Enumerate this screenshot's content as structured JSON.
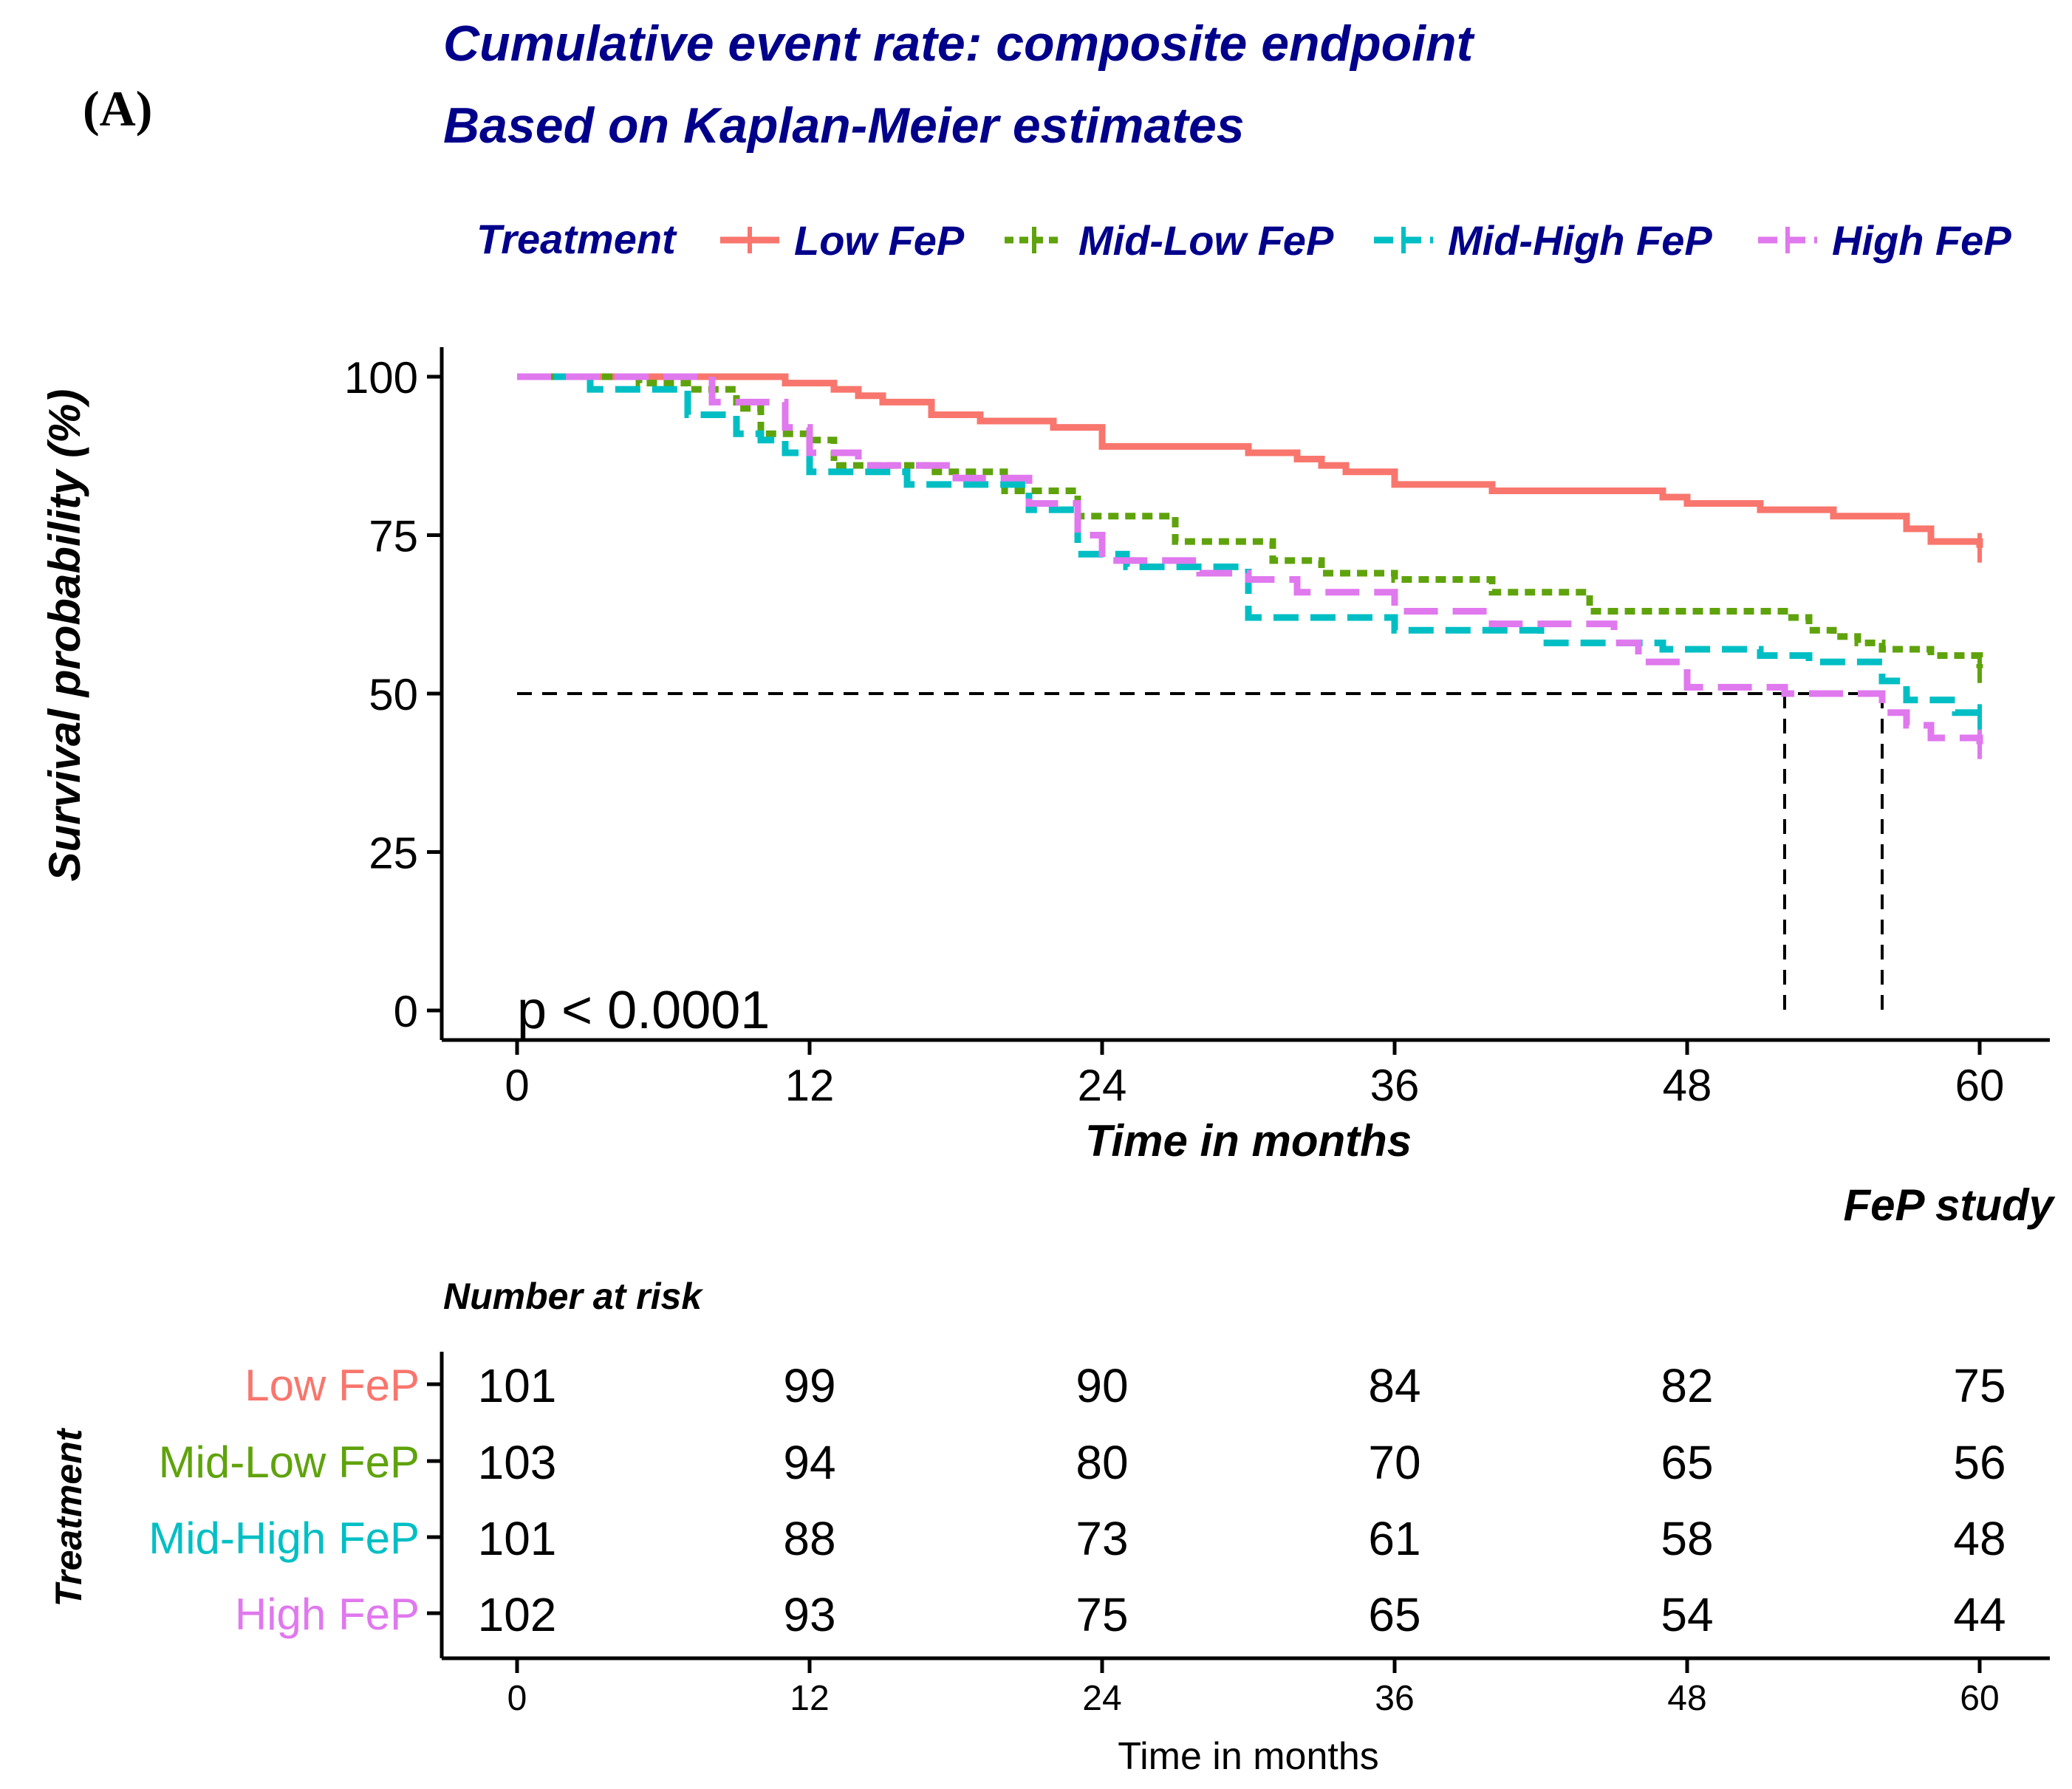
{
  "panel_label": "(A)",
  "chart_data": {
    "type": "line",
    "title": "Cumulative event rate: composite endpoint",
    "subtitle": "Based on Kaplan-Meier estimates",
    "xlabel": "Time in months",
    "ylabel": "Survival probability (%)",
    "caption": "FeP study",
    "xlim": [
      0,
      60
    ],
    "ylim": [
      0,
      100
    ],
    "xticks": [
      0,
      12,
      24,
      36,
      48,
      60
    ],
    "yticks": [
      0,
      25,
      50,
      75,
      100
    ],
    "pvalue": "p < 0.0001",
    "legend": {
      "title": "Treatment",
      "position": "top"
    },
    "median_reference": {
      "y": 50,
      "x_from": 0,
      "x_to": 56,
      "verticals": [
        52,
        56
      ]
    },
    "series": [
      {
        "name": "Low FeP",
        "color": "#F8766D",
        "dash": "solid",
        "x": [
          0,
          11,
          13,
          14,
          15,
          17,
          19,
          22,
          24,
          30,
          32,
          33,
          34,
          36,
          40,
          47,
          48,
          51,
          54,
          57,
          58,
          60
        ],
        "y": [
          100,
          99,
          98,
          97,
          96,
          94,
          93,
          92,
          89,
          88,
          87,
          86,
          85,
          83,
          82,
          81,
          80,
          79,
          78,
          76,
          74,
          73
        ]
      },
      {
        "name": "Mid-Low FeP",
        "color": "#5FA30C",
        "dash": "dotted",
        "x": [
          0,
          5,
          7,
          9,
          10,
          12,
          13,
          17,
          20,
          23,
          27,
          31,
          33,
          36,
          40,
          44,
          52,
          53,
          54,
          55,
          56,
          58,
          60
        ],
        "y": [
          100,
          99,
          98,
          95,
          91,
          90,
          86,
          85,
          82,
          78,
          74,
          71,
          69,
          68,
          66,
          63,
          62,
          60,
          59,
          58,
          57,
          56,
          54
        ]
      },
      {
        "name": "Mid-High FeP",
        "color": "#00BFC4",
        "dash": "dashed",
        "x": [
          0,
          3,
          7,
          9,
          10,
          11,
          12,
          16,
          21,
          23,
          25,
          30,
          36,
          42,
          47,
          51,
          53,
          56,
          57,
          59,
          60
        ],
        "y": [
          100,
          98,
          94,
          91,
          90,
          88,
          85,
          83,
          79,
          72,
          70,
          62,
          60,
          58,
          57,
          56,
          55,
          52,
          49,
          47,
          46
        ]
      },
      {
        "name": "High FeP",
        "color": "#E078EE",
        "dash": "longdash",
        "x": [
          0,
          8,
          11,
          12,
          14,
          18,
          21,
          23,
          24,
          28,
          30,
          32,
          36,
          40,
          45,
          46,
          48,
          52,
          56,
          57,
          58,
          60
        ],
        "y": [
          100,
          96,
          92,
          88,
          86,
          84,
          80,
          75,
          71,
          69,
          68,
          66,
          63,
          61,
          58,
          55,
          51,
          50,
          47,
          45,
          43,
          42
        ]
      }
    ],
    "risk_table": {
      "title": "Number at risk",
      "row_title": "Treatment",
      "xlabel": "Time in months",
      "times": [
        0,
        12,
        24,
        36,
        48,
        60
      ],
      "rows": [
        {
          "name": "Low FeP",
          "color": "#F8766D",
          "values": [
            101,
            99,
            90,
            84,
            82,
            75
          ]
        },
        {
          "name": "Mid-Low FeP",
          "color": "#5FA30C",
          "values": [
            103,
            94,
            80,
            70,
            65,
            56
          ]
        },
        {
          "name": "Mid-High FeP",
          "color": "#00BFC4",
          "values": [
            101,
            88,
            73,
            61,
            58,
            48
          ]
        },
        {
          "name": "High FeP",
          "color": "#E078EE",
          "values": [
            102,
            93,
            75,
            65,
            54,
            44
          ]
        }
      ]
    }
  }
}
